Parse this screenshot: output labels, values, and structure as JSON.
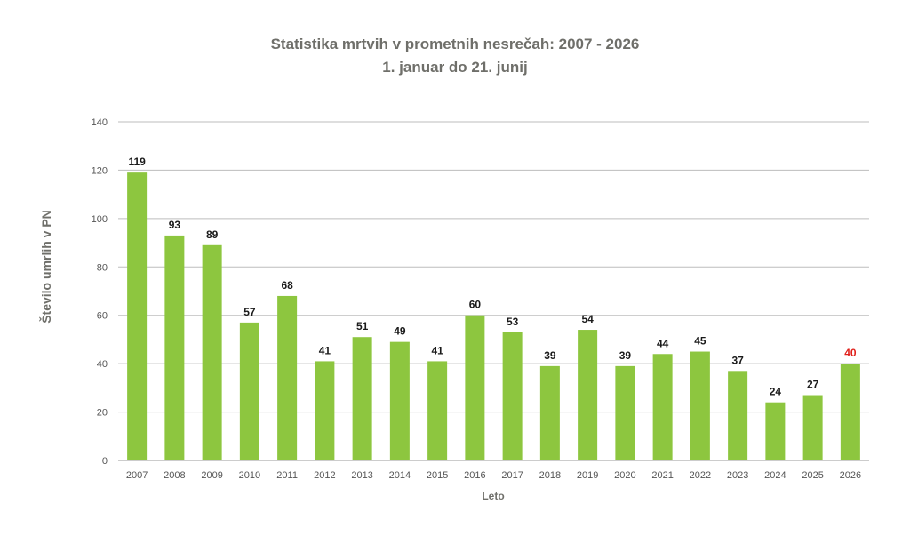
{
  "chart_data": {
    "type": "bar",
    "title": "Statistika mrtvih v prometnih nesrečah: 2007 - 2026",
    "subtitle": "1. januar do 21. junij",
    "xlabel": "Leto",
    "ylabel": "Število umrlih v PN",
    "ylim": [
      0,
      140
    ],
    "yticks": [
      0,
      20,
      40,
      60,
      80,
      100,
      120,
      140
    ],
    "grid": true,
    "categories": [
      "2007",
      "2008",
      "2009",
      "2010",
      "2011",
      "2012",
      "2013",
      "2014",
      "2015",
      "2016",
      "2017",
      "2018",
      "2019",
      "2020",
      "2021",
      "2022",
      "2023",
      "2024",
      "2025",
      "2026"
    ],
    "values": [
      119,
      93,
      89,
      57,
      68,
      41,
      51,
      49,
      41,
      60,
      53,
      39,
      54,
      39,
      44,
      45,
      37,
      24,
      27,
      40
    ],
    "highlight_label_index": 19,
    "colors": {
      "bar": "#8dc63f",
      "label": "#1a1a1a",
      "highlight_label": "#e0201b",
      "grid": "#bdbdbd",
      "axis_text": "#555555",
      "title": "#6f6f6a"
    }
  }
}
